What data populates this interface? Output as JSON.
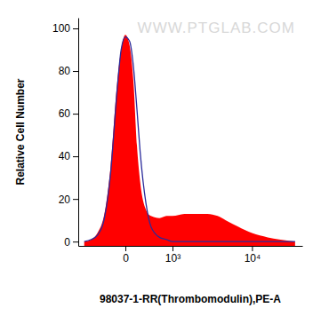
{
  "chart_data": {
    "type": "area",
    "x_label": "98037-1-RR(Thrombomodulin),PE-A",
    "y_label": "Relative Cell Number",
    "annotation": "WWW.PTGLAB.COM",
    "log": "x",
    "x": [
      -800,
      -600,
      -450,
      -300,
      -200,
      -100,
      -50,
      0,
      50,
      100,
      150,
      200,
      300,
      400,
      600,
      800,
      1000,
      1500,
      2000,
      3000,
      4000,
      5000,
      7000,
      10000,
      15000,
      20000,
      30000
    ],
    "series": [
      {
        "type": "area",
        "color": "#ff0000",
        "values": [
          0,
          1,
          4,
          14,
          35,
          75,
          90,
          97,
          92,
          75,
          45,
          28,
          15,
          12,
          11,
          12,
          12,
          13,
          13,
          13,
          12,
          10,
          7,
          4,
          2,
          1,
          0
        ]
      },
      {
        "type": "line",
        "color": "#2a2a9a",
        "values": [
          0,
          1,
          3,
          12,
          32,
          72,
          90,
          96,
          94,
          82,
          62,
          42,
          18,
          7,
          2,
          1,
          0,
          0,
          0,
          0,
          0,
          0,
          0,
          0,
          0,
          0,
          0
        ]
      }
    ],
    "xlim": [
      -1000,
      36000
    ],
    "xticks": [
      {
        "value": 0,
        "label": "0"
      },
      {
        "value": 1000,
        "label": "10³"
      },
      {
        "value": 10000,
        "label": "10⁴"
      }
    ],
    "ylim": [
      -2,
      105
    ],
    "yticks": [
      0,
      20,
      40,
      60,
      80,
      100
    ]
  }
}
